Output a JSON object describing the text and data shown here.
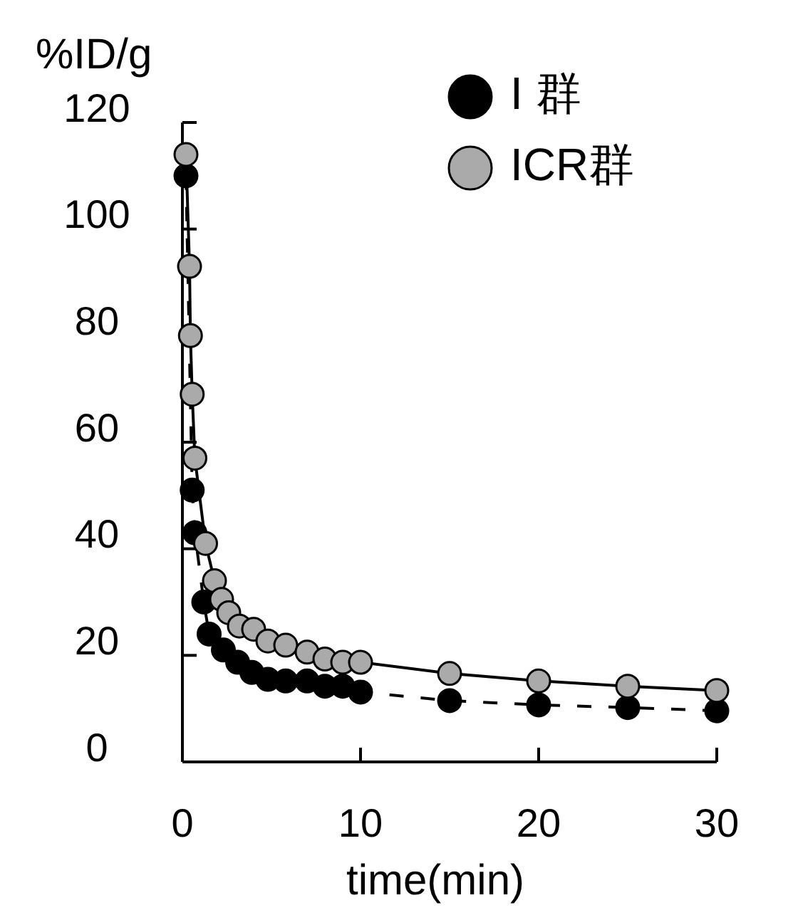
{
  "chart_data": {
    "type": "line",
    "ylabel": "%ID/g",
    "xlabel": "time(min)",
    "xlim": [
      0,
      30
    ],
    "ylim": [
      0,
      120
    ],
    "xticks": [
      0,
      10,
      20,
      30
    ],
    "yticks": [
      0,
      20,
      40,
      60,
      80,
      100,
      120
    ],
    "marker": "circle",
    "legend": "top right",
    "grid": false,
    "series": [
      {
        "name": "I 群",
        "color": "#000000",
        "line_style": "dashed",
        "x": [
          0.2,
          0.55,
          0.7,
          1.2,
          1.5,
          2.3,
          3.1,
          3.9,
          4.8,
          5.8,
          7,
          8,
          9,
          10,
          15,
          20,
          25,
          30
        ],
        "values": [
          110,
          51,
          43,
          30,
          24,
          21,
          18.7,
          16.8,
          15.5,
          15.2,
          15.2,
          14.2,
          14.2,
          13.1,
          11.5,
          10.7,
          10.2,
          9.6
        ]
      },
      {
        "name": "ICR群",
        "color": "#aaaaaa",
        "line_style": "solid",
        "x": [
          0.2,
          0.4,
          0.45,
          0.55,
          0.7,
          1.3,
          1.8,
          2.2,
          2.6,
          3.2,
          4,
          4.8,
          5.8,
          7,
          8,
          9,
          10,
          15,
          20,
          25,
          30
        ],
        "values": [
          114,
          93,
          80,
          69,
          57,
          41,
          34,
          30.5,
          28,
          25.5,
          24.9,
          22.7,
          21.9,
          20.6,
          19.3,
          18.7,
          18.7,
          16.6,
          15.2,
          14.2,
          13.4
        ]
      }
    ]
  }
}
